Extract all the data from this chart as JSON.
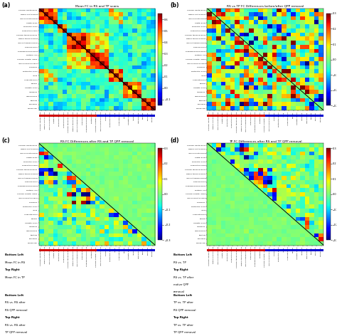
{
  "titles": [
    "Mean FC in RS and TP scans",
    "RS vs TP FC Differences before/after QPP removal",
    "RS FC Differences after RS and TP QPP removal",
    "TP FC Differences after RS and TP QPP removal"
  ],
  "panel_labels": [
    "(a)",
    "(b)",
    "(c)",
    "(d)"
  ],
  "y_labels": [
    "Superior frontal gyrus",
    "Middle frontal gyrus",
    "Inferior frontal gyrus",
    "Orbital gyrus",
    "Precentral gyrus",
    "Paracentral lobule",
    "Superior temporal gyrus",
    "Middle temporal gyrus",
    "Inferior temporal gyrus",
    "Fusiform gyrus",
    "Parahippocampal gyrus",
    "Posterior STS",
    "Superior parietal lobule",
    "Inferior parietal lobule",
    "Precuneus",
    "Postcentral gyrus",
    "Insula",
    "Cingulate gyrus",
    "Cuneus",
    "Occipital gyrus",
    "Amygdala",
    "Hippocampus",
    "Striatum",
    "Thalamus",
    "Cerebellum"
  ],
  "bl_texts": [
    [
      "Bottom Left",
      "Mean FC in RS",
      "Top Right",
      "Mean FC in TP"
    ],
    [
      "Bottom Left",
      "RS vs. TP",
      "Top Right",
      "RS vs. TP after",
      "native QPP",
      "removal"
    ],
    [
      "Bottom Left",
      "RS vs. RS after",
      "RS QPP removal",
      "Top Right",
      "RS vs. RS after",
      "TP QPP removal"
    ],
    [
      "Bottom Left",
      "TP vs. TP after",
      "RS QPP removal",
      "Top Right",
      "TP vs. TP after",
      "TP QPP removal"
    ]
  ],
  "vlim_a": [
    -0.15,
    0.65
  ],
  "vlim_bcd": [
    -0.3,
    0.3
  ],
  "n_regions": 25,
  "fig_bg": "#ffffff",
  "label_bar_colors": [
    [
      "#cc0000",
      "#0000cc"
    ],
    [
      "#cc0000",
      "#0000cc"
    ],
    [
      "#cc0000",
      "#0000cc"
    ],
    [
      "#cc0000",
      "#0000cc"
    ]
  ]
}
